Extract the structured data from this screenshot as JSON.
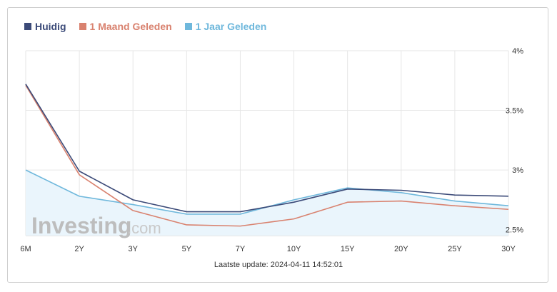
{
  "legend": [
    {
      "label": "Huidig",
      "color": "#3b4a78"
    },
    {
      "label": "1 Maand Geleden",
      "color": "#d9826f"
    },
    {
      "label": "1 Jaar Geleden",
      "color": "#6fb8dc"
    }
  ],
  "footer": {
    "prefix": "Laatste update: ",
    "timestamp": "2024-04-11 14:52:01"
  },
  "watermark": {
    "brand": "Investing",
    "suffix": ".com"
  },
  "chart_data": {
    "type": "line",
    "categories": [
      "6M",
      "2Y",
      "3Y",
      "5Y",
      "7Y",
      "10Y",
      "15Y",
      "20Y",
      "25Y",
      "30Y"
    ],
    "series": [
      {
        "name": "Huidig",
        "color": "#3b4a78",
        "values": [
          3.72,
          2.99,
          2.75,
          2.65,
          2.65,
          2.73,
          2.84,
          2.83,
          2.79,
          2.78
        ]
      },
      {
        "name": "1 Maand Geleden",
        "color": "#d9826f",
        "values": [
          3.71,
          2.96,
          2.66,
          2.54,
          2.53,
          2.59,
          2.73,
          2.74,
          2.7,
          2.67
        ]
      },
      {
        "name": "1 Jaar Geleden",
        "color": "#6fb8dc",
        "values": [
          3.0,
          2.78,
          2.71,
          2.63,
          2.63,
          2.75,
          2.85,
          2.81,
          2.74,
          2.7
        ]
      }
    ],
    "yticks": [
      2.5,
      3.0,
      3.5,
      4.0
    ],
    "ytick_labels": [
      "2.5%",
      "3%",
      "3.5%",
      "4%"
    ],
    "ylim": [
      2.45,
      4.0
    ],
    "y_axis_position": "right",
    "grid": true,
    "legend_position": "top-left",
    "area_fill_series": "1 Jaar Geleden",
    "area_fill_color": "#eaf5fc"
  }
}
